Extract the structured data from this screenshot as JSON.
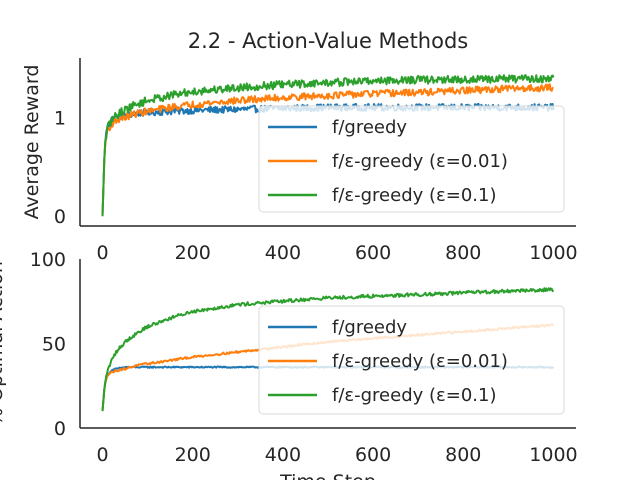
{
  "chart_data": {
    "title": "2.2 - Action-Value Methods",
    "type": "line",
    "xlabel": "Time Step",
    "colors": {
      "f/greedy": "#1f77b4",
      "f/ε-greedy (ε=0.01)": "#ff7f0e",
      "f/ε-greedy (ε=0.1)": "#2ca02c"
    },
    "panels": [
      {
        "name": "average-reward",
        "ylabel": "Average Reward",
        "xlim": [
          -50,
          1050
        ],
        "ylim": [
          -0.1,
          1.6
        ],
        "xticks": [
          0,
          200,
          400,
          600,
          800,
          1000
        ],
        "yticks": [
          0,
          1
        ],
        "legend_placement": "lower-right",
        "grid": false,
        "series": [
          {
            "name": "f/greedy",
            "x": [
              0,
              5,
              10,
              20,
              30,
              50,
              75,
              100,
              150,
              200,
              300,
              400,
              500,
              600,
              700,
              800,
              900,
              1000
            ],
            "y": [
              0.0,
              0.72,
              0.9,
              0.98,
              1.0,
              1.02,
              1.04,
              1.05,
              1.06,
              1.07,
              1.08,
              1.09,
              1.1,
              1.1,
              1.1,
              1.1,
              1.1,
              1.1
            ],
            "noise": 0.035
          },
          {
            "name": "f/ε-greedy (ε=0.01)",
            "x": [
              0,
              5,
              10,
              20,
              30,
              50,
              75,
              100,
              150,
              200,
              300,
              400,
              500,
              600,
              700,
              800,
              900,
              1000
            ],
            "y": [
              0.0,
              0.7,
              0.86,
              0.93,
              0.97,
              1.0,
              1.04,
              1.06,
              1.1,
              1.13,
              1.17,
              1.2,
              1.22,
              1.24,
              1.25,
              1.27,
              1.29,
              1.3
            ],
            "noise": 0.035
          },
          {
            "name": "f/ε-greedy (ε=0.1)",
            "x": [
              0,
              5,
              10,
              20,
              30,
              50,
              75,
              100,
              150,
              200,
              300,
              400,
              500,
              600,
              700,
              800,
              900,
              1000
            ],
            "y": [
              0.0,
              0.72,
              0.88,
              0.97,
              1.02,
              1.08,
              1.13,
              1.17,
              1.22,
              1.26,
              1.3,
              1.33,
              1.35,
              1.37,
              1.38,
              1.38,
              1.39,
              1.39
            ],
            "noise": 0.04
          }
        ]
      },
      {
        "name": "optimal-action",
        "ylabel": "% Optimal Action",
        "xlim": [
          -50,
          1050
        ],
        "ylim": [
          0,
          100
        ],
        "xticks": [
          0,
          200,
          400,
          600,
          800,
          1000
        ],
        "yticks": [
          0,
          50,
          100
        ],
        "legend_placement": "lower-right",
        "grid": false,
        "series": [
          {
            "name": "f/greedy",
            "x": [
              0,
              5,
              10,
              20,
              30,
              50,
              75,
              100,
              150,
              200,
              300,
              400,
              500,
              600,
              700,
              800,
              900,
              1000
            ],
            "y": [
              10,
              26,
              31,
              34,
              35,
              36,
              36,
              36,
              36,
              36,
              36,
              36,
              36,
              36,
              36,
              36,
              36,
              36
            ],
            "noise": 0.4
          },
          {
            "name": "f/ε-greedy (ε=0.01)",
            "x": [
              0,
              5,
              10,
              20,
              30,
              50,
              75,
              100,
              150,
              200,
              300,
              400,
              500,
              600,
              700,
              800,
              900,
              1000
            ],
            "y": [
              10,
              26,
              31,
              33,
              34,
              35,
              37,
              38,
              40,
              42,
              45,
              48,
              51,
              53,
              55,
              57,
              59,
              61
            ],
            "noise": 0.6
          },
          {
            "name": "f/ε-greedy (ε=0.1)",
            "x": [
              0,
              5,
              10,
              20,
              30,
              50,
              75,
              100,
              150,
              200,
              300,
              400,
              500,
              600,
              700,
              800,
              900,
              1000
            ],
            "y": [
              10,
              26,
              33,
              40,
              45,
              51,
              56,
              60,
              65,
              69,
              73,
              75,
              77,
              78,
              79,
              80,
              81,
              82
            ],
            "noise": 1.0
          }
        ]
      }
    ]
  }
}
